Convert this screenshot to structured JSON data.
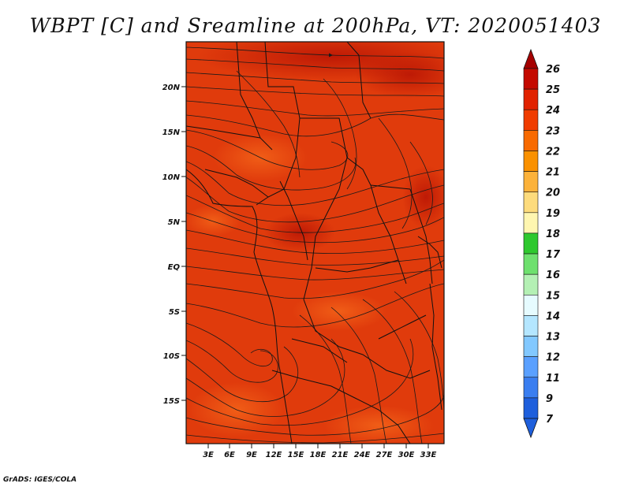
{
  "title": "WBPT [C] and Sreamline at 200hPa, VT: 2020051403",
  "credit": "GrADS: IGES/COLA",
  "map": {
    "lat_labels": [
      "20N",
      "15N",
      "10N",
      "5N",
      "EQ",
      "5S",
      "10S",
      "15S"
    ],
    "lon_labels": [
      "3E",
      "6E",
      "9E",
      "12E",
      "15E",
      "18E",
      "21E",
      "24E",
      "27E",
      "30E",
      "33E"
    ],
    "field_color": "#e03b0c",
    "field_dark": "#c31b05",
    "field_light": "#f05812",
    "streamline_color": "#1a1a1a",
    "border_color": "#111111"
  },
  "colorbar": {
    "labels": [
      "26",
      "25",
      "24",
      "23",
      "22",
      "21",
      "20",
      "19",
      "18",
      "17",
      "16",
      "15",
      "14",
      "13",
      "12",
      "11",
      "9",
      "7"
    ],
    "colors": [
      "#a50000",
      "#c40a00",
      "#e12200",
      "#f03c00",
      "#f86a00",
      "#fa9100",
      "#fcb23a",
      "#fddb7c",
      "#fff6b0",
      "#2ec82e",
      "#6ee06e",
      "#b4f0b4",
      "#e6fbff",
      "#b4e6ff",
      "#82c8ff",
      "#5aa0ff",
      "#3a7ef0",
      "#1e5fdc"
    ],
    "top_color": "#a50000",
    "bottom_color": "#1e5fdc"
  }
}
